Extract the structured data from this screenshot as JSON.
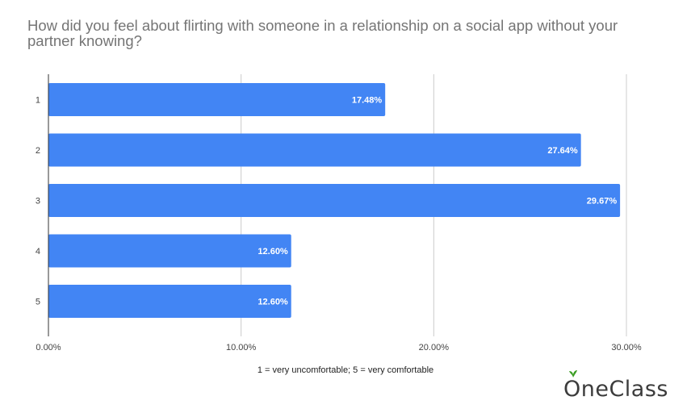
{
  "chart_data": {
    "type": "bar",
    "orientation": "horizontal",
    "title": "How did you feel about flirting with someone in a relationship on a social app without your partner knowing?",
    "xlabel": "1 = very uncomfortable; 5 = very comfortable",
    "ylabel": "",
    "categories": [
      "1",
      "2",
      "3",
      "4",
      "5"
    ],
    "values": [
      17.48,
      27.64,
      29.67,
      12.6,
      12.6
    ],
    "data_labels": [
      "17.48%",
      "27.64%",
      "29.67%",
      "12.60%",
      "12.60%"
    ],
    "xlim": [
      0,
      30
    ],
    "xticks": [
      0,
      10,
      20,
      30
    ],
    "xtick_labels": [
      "0.00%",
      "10.00%",
      "20.00%",
      "30.00%"
    ],
    "grid": true,
    "legend": "none",
    "colors": {
      "bar": "#4285f4",
      "grid": "#cccccc",
      "axis": "#333333"
    }
  },
  "logo": {
    "text_first": "O",
    "text_rest": "neClass",
    "leaf_color": "#3a9d23"
  }
}
